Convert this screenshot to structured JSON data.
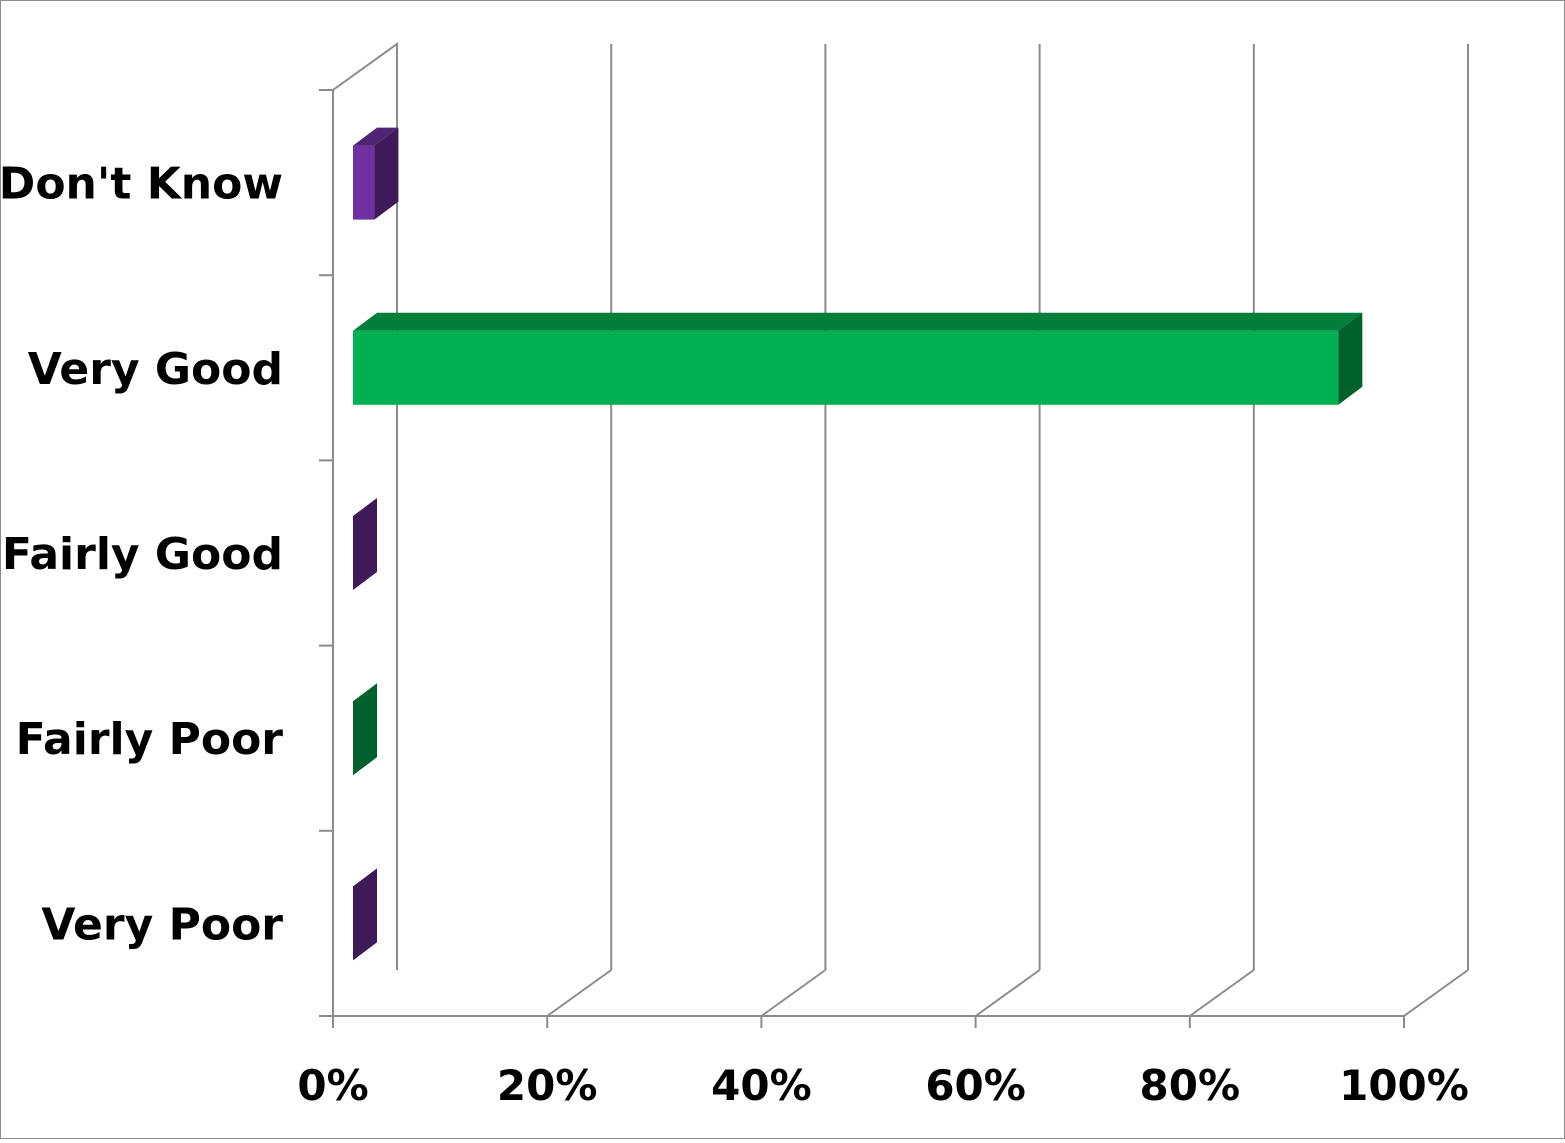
{
  "chart_data": {
    "type": "bar",
    "orientation": "horizontal",
    "style": "3d",
    "categories": [
      "Don't Know",
      "Very Good",
      "Fairly Good",
      "Fairly Poor",
      "Very Poor"
    ],
    "values": [
      2,
      92,
      0,
      0,
      0
    ],
    "xlim": [
      0,
      100
    ],
    "xticks": [
      "0%",
      "20%",
      "40%",
      "60%",
      "80%",
      "100%"
    ],
    "grid": true,
    "legend": "none",
    "colors": {
      "Don't Know": "#7030a0",
      "Very Good": "#00b050",
      "Fairly Good": "#7030a0",
      "Fairly Poor": "#00b050",
      "Very Poor": "#7030a0"
    },
    "title": "",
    "xlabel": "",
    "ylabel": ""
  }
}
